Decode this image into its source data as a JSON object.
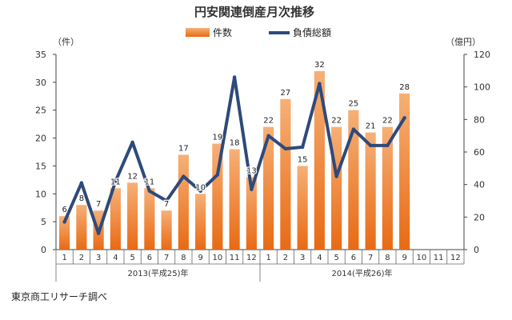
{
  "chart_data": {
    "type": "bar",
    "title": "円安関連倒産月次推移",
    "left_unit": "（件）",
    "right_unit": "（億円）",
    "y_left_lim": [
      0,
      35
    ],
    "y_left_ticks": [
      0,
      5,
      10,
      15,
      20,
      25,
      30,
      35
    ],
    "y_right_lim": [
      0,
      120
    ],
    "y_right_ticks": [
      0,
      20,
      40,
      60,
      80,
      100,
      120
    ],
    "categories": [
      "1",
      "2",
      "3",
      "4",
      "5",
      "6",
      "7",
      "8",
      "9",
      "10",
      "11",
      "12",
      "1",
      "2",
      "3",
      "4",
      "5",
      "6",
      "7",
      "8",
      "9",
      "10",
      "11",
      "12"
    ],
    "year_groups": [
      {
        "label": "2013(平成25)年",
        "start": 0,
        "end": 11
      },
      {
        "label": "2014(平成26)年",
        "start": 12,
        "end": 23
      }
    ],
    "legend_position": "top-center",
    "grid": false,
    "series": [
      {
        "name": "件数",
        "type": "bar",
        "axis": "left",
        "color": "#f08a3a",
        "values": [
          6,
          8,
          7,
          11,
          12,
          11,
          7,
          17,
          10,
          19,
          18,
          13,
          22,
          27,
          15,
          32,
          22,
          25,
          21,
          22,
          28,
          null,
          null,
          null
        ]
      },
      {
        "name": "負債総額",
        "type": "line",
        "axis": "right",
        "color": "#2e4a7a",
        "values": [
          17,
          41,
          10,
          42,
          66,
          36,
          30,
          45,
          36,
          46,
          106,
          37,
          70,
          62,
          63,
          102,
          45,
          74,
          64,
          64,
          81,
          null,
          null,
          null
        ]
      }
    ]
  },
  "source": "東京商工リサーチ調べ"
}
